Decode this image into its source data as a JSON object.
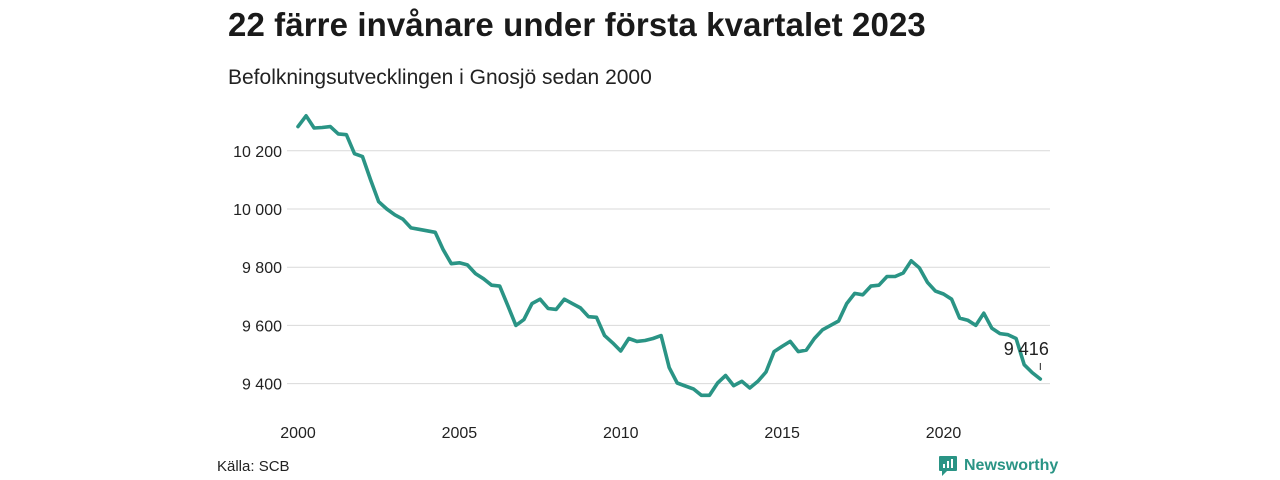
{
  "header": {
    "title": "22 färre invånare under första kvartalet 2023",
    "subtitle": "Befolkningsutvecklingen i Gnosjö sedan 2000"
  },
  "footer": {
    "source": "Källa: SCB",
    "brand": "Newsworthy"
  },
  "colors": {
    "line": "#2a9485",
    "grid": "#d9d9d9",
    "brand": "#2a9485"
  },
  "chart_data": {
    "type": "line",
    "title": "22 färre invånare under första kvartalet 2023",
    "subtitle": "Befolkningsutvecklingen i Gnosjö sedan 2000",
    "xlim": [
      2000,
      2023.3
    ],
    "ylim": [
      9330,
      10340
    ],
    "xticks": [
      2000,
      2005,
      2010,
      2015,
      2020
    ],
    "yticks": [
      {
        "value": 9400,
        "label": "9 400"
      },
      {
        "value": 9600,
        "label": "9 600"
      },
      {
        "value": 9800,
        "label": "9 800"
      },
      {
        "value": 10000,
        "label": "10 000"
      },
      {
        "value": 10200,
        "label": "10 200"
      }
    ],
    "grid": true,
    "annotation": {
      "x": 2023.0,
      "y": 9416,
      "label": "9 416"
    },
    "series": [
      {
        "points": [
          [
            2000.0,
            10283
          ],
          [
            2000.25,
            10320
          ],
          [
            2000.5,
            10278
          ],
          [
            2000.75,
            10280
          ],
          [
            2001.0,
            10283
          ],
          [
            2001.25,
            10258
          ],
          [
            2001.5,
            10255
          ],
          [
            2001.75,
            10190
          ],
          [
            2002.0,
            10180
          ],
          [
            2002.25,
            10100
          ],
          [
            2002.5,
            10025
          ],
          [
            2002.75,
            10000
          ],
          [
            2003.0,
            9980
          ],
          [
            2003.25,
            9965
          ],
          [
            2003.5,
            9935
          ],
          [
            2003.75,
            9930
          ],
          [
            2004.0,
            9925
          ],
          [
            2004.25,
            9920
          ],
          [
            2004.5,
            9860
          ],
          [
            2004.75,
            9812
          ],
          [
            2005.0,
            9815
          ],
          [
            2005.25,
            9808
          ],
          [
            2005.5,
            9778
          ],
          [
            2005.75,
            9760
          ],
          [
            2006.0,
            9738
          ],
          [
            2006.25,
            9735
          ],
          [
            2006.5,
            9668
          ],
          [
            2006.75,
            9600
          ],
          [
            2007.0,
            9620
          ],
          [
            2007.25,
            9675
          ],
          [
            2007.5,
            9690
          ],
          [
            2007.75,
            9658
          ],
          [
            2008.0,
            9655
          ],
          [
            2008.25,
            9690
          ],
          [
            2008.5,
            9675
          ],
          [
            2008.75,
            9660
          ],
          [
            2009.0,
            9630
          ],
          [
            2009.25,
            9628
          ],
          [
            2009.5,
            9565
          ],
          [
            2009.75,
            9540
          ],
          [
            2010.0,
            9512
          ],
          [
            2010.25,
            9555
          ],
          [
            2010.5,
            9545
          ],
          [
            2010.75,
            9548
          ],
          [
            2011.0,
            9555
          ],
          [
            2011.25,
            9565
          ],
          [
            2011.5,
            9455
          ],
          [
            2011.75,
            9402
          ],
          [
            2012.0,
            9392
          ],
          [
            2012.25,
            9382
          ],
          [
            2012.5,
            9360
          ],
          [
            2012.75,
            9360
          ],
          [
            2013.0,
            9402
          ],
          [
            2013.25,
            9428
          ],
          [
            2013.5,
            9393
          ],
          [
            2013.75,
            9408
          ],
          [
            2014.0,
            9385
          ],
          [
            2014.25,
            9408
          ],
          [
            2014.5,
            9440
          ],
          [
            2014.75,
            9510
          ],
          [
            2015.0,
            9528
          ],
          [
            2015.25,
            9545
          ],
          [
            2015.5,
            9510
          ],
          [
            2015.75,
            9515
          ],
          [
            2016.0,
            9555
          ],
          [
            2016.25,
            9585
          ],
          [
            2016.5,
            9600
          ],
          [
            2016.75,
            9615
          ],
          [
            2017.0,
            9675
          ],
          [
            2017.25,
            9710
          ],
          [
            2017.5,
            9705
          ],
          [
            2017.75,
            9735
          ],
          [
            2018.0,
            9738
          ],
          [
            2018.25,
            9768
          ],
          [
            2018.5,
            9768
          ],
          [
            2018.75,
            9780
          ],
          [
            2019.0,
            9822
          ],
          [
            2019.25,
            9798
          ],
          [
            2019.5,
            9748
          ],
          [
            2019.75,
            9718
          ],
          [
            2020.0,
            9708
          ],
          [
            2020.25,
            9690
          ],
          [
            2020.5,
            9625
          ],
          [
            2020.75,
            9618
          ],
          [
            2021.0,
            9600
          ],
          [
            2021.25,
            9642
          ],
          [
            2021.5,
            9590
          ],
          [
            2021.75,
            9572
          ],
          [
            2022.0,
            9568
          ],
          [
            2022.25,
            9555
          ],
          [
            2022.5,
            9465
          ],
          [
            2022.75,
            9438
          ],
          [
            2023.0,
            9416
          ]
        ]
      }
    ]
  }
}
